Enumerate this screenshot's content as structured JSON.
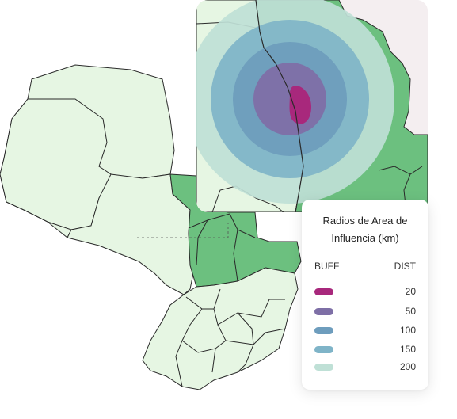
{
  "legend": {
    "title": "Radios de Area de Influencia (km)",
    "col_buff": "BUFF",
    "col_dist": "DIST",
    "items": [
      {
        "value": "20",
        "color": "#a8287c"
      },
      {
        "value": "50",
        "color": "#7e6fa6"
      },
      {
        "value": "100",
        "color": "#6e9dbd"
      },
      {
        "value": "150",
        "color": "#7fb4c8"
      },
      {
        "value": "200",
        "color": "#bfe0d6"
      }
    ]
  },
  "colors": {
    "region_base": "#e6f6e3",
    "region_highlight": "#6cc07f",
    "border": "#2a2a2a",
    "inset_background": "#f4eef0"
  }
}
